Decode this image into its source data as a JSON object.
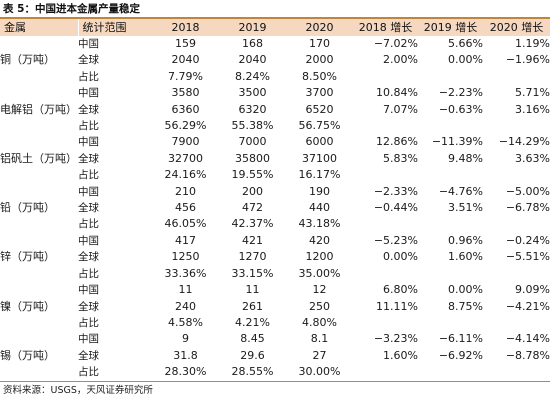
{
  "caption": "表 5：中国进本金属产量稳定",
  "headers": [
    "金属",
    "统计范围",
    "2018",
    "2019",
    "2020",
    "2018 增长",
    "2019 增长",
    "2020 增长"
  ],
  "groups": [
    {
      "metal": "铜（万吨）",
      "rows": [
        {
          "scope": "中国",
          "v2018": "159",
          "v2019": "168",
          "v2020": "170",
          "g2018": "−7.02%",
          "g2019": "5.66%",
          "g2020": "1.19%"
        },
        {
          "scope": "全球",
          "v2018": "2040",
          "v2019": "2040",
          "v2020": "2000",
          "g2018": "2.00%",
          "g2019": "0.00%",
          "g2020": "−1.96%"
        },
        {
          "scope": "占比",
          "v2018": "7.79%",
          "v2019": "8.24%",
          "v2020": "8.50%",
          "g2018": "",
          "g2019": "",
          "g2020": ""
        }
      ]
    },
    {
      "metal": "电解铝（万吨）",
      "rows": [
        {
          "scope": "中国",
          "v2018": "3580",
          "v2019": "3500",
          "v2020": "3700",
          "g2018": "10.84%",
          "g2019": "−2.23%",
          "g2020": "5.71%"
        },
        {
          "scope": "全球",
          "v2018": "6360",
          "v2019": "6320",
          "v2020": "6520",
          "g2018": "7.07%",
          "g2019": "−0.63%",
          "g2020": "3.16%"
        },
        {
          "scope": "占比",
          "v2018": "56.29%",
          "v2019": "55.38%",
          "v2020": "56.75%",
          "g2018": "",
          "g2019": "",
          "g2020": ""
        }
      ]
    },
    {
      "metal": "铝矾土（万吨）",
      "rows": [
        {
          "scope": "中国",
          "v2018": "7900",
          "v2019": "7000",
          "v2020": "6000",
          "g2018": "12.86%",
          "g2019": "−11.39%",
          "g2020": "−14.29%"
        },
        {
          "scope": "全球",
          "v2018": "32700",
          "v2019": "35800",
          "v2020": "37100",
          "g2018": "5.83%",
          "g2019": "9.48%",
          "g2020": "3.63%"
        },
        {
          "scope": "占比",
          "v2018": "24.16%",
          "v2019": "19.55%",
          "v2020": "16.17%",
          "g2018": "",
          "g2019": "",
          "g2020": ""
        }
      ]
    },
    {
      "metal": "铅（万吨）",
      "rows": [
        {
          "scope": "中国",
          "v2018": "210",
          "v2019": "200",
          "v2020": "190",
          "g2018": "−2.33%",
          "g2019": "−4.76%",
          "g2020": "−5.00%"
        },
        {
          "scope": "全球",
          "v2018": "456",
          "v2019": "472",
          "v2020": "440",
          "g2018": "−0.44%",
          "g2019": "3.51%",
          "g2020": "−6.78%"
        },
        {
          "scope": "占比",
          "v2018": "46.05%",
          "v2019": "42.37%",
          "v2020": "43.18%",
          "g2018": "",
          "g2019": "",
          "g2020": ""
        }
      ]
    },
    {
      "metal": "锌（万吨）",
      "rows": [
        {
          "scope": "中国",
          "v2018": "417",
          "v2019": "421",
          "v2020": "420",
          "g2018": "−5.23%",
          "g2019": "0.96%",
          "g2020": "−0.24%"
        },
        {
          "scope": "全球",
          "v2018": "1250",
          "v2019": "1270",
          "v2020": "1200",
          "g2018": "0.00%",
          "g2019": "1.60%",
          "g2020": "−5.51%"
        },
        {
          "scope": "占比",
          "v2018": "33.36%",
          "v2019": "33.15%",
          "v2020": "35.00%",
          "g2018": "",
          "g2019": "",
          "g2020": ""
        }
      ]
    },
    {
      "metal": "镍（万吨）",
      "rows": [
        {
          "scope": "中国",
          "v2018": "11",
          "v2019": "11",
          "v2020": "12",
          "g2018": "6.80%",
          "g2019": "0.00%",
          "g2020": "9.09%"
        },
        {
          "scope": "全球",
          "v2018": "240",
          "v2019": "261",
          "v2020": "250",
          "g2018": "11.11%",
          "g2019": "8.75%",
          "g2020": "−4.21%"
        },
        {
          "scope": "占比",
          "v2018": "4.58%",
          "v2019": "4.21%",
          "v2020": "4.80%",
          "g2018": "",
          "g2019": "",
          "g2020": ""
        }
      ]
    },
    {
      "metal": "锡（万吨）",
      "rows": [
        {
          "scope": "中国",
          "v2018": "9",
          "v2019": "8.45",
          "v2020": "8.1",
          "g2018": "−3.23%",
          "g2019": "−6.11%",
          "g2020": "−4.14%"
        },
        {
          "scope": "全球",
          "v2018": "31.8",
          "v2019": "29.6",
          "v2020": "27",
          "g2018": "1.60%",
          "g2019": "−6.92%",
          "g2020": "−8.78%"
        },
        {
          "scope": "占比",
          "v2018": "28.30%",
          "v2019": "28.55%",
          "v2020": "30.00%",
          "g2018": "",
          "g2019": "",
          "g2020": ""
        }
      ]
    }
  ],
  "source": "资料来源：USGS，天风证券研究所",
  "colors": {
    "header_bg": "#f6d8c0",
    "rule": "#c0843a"
  }
}
